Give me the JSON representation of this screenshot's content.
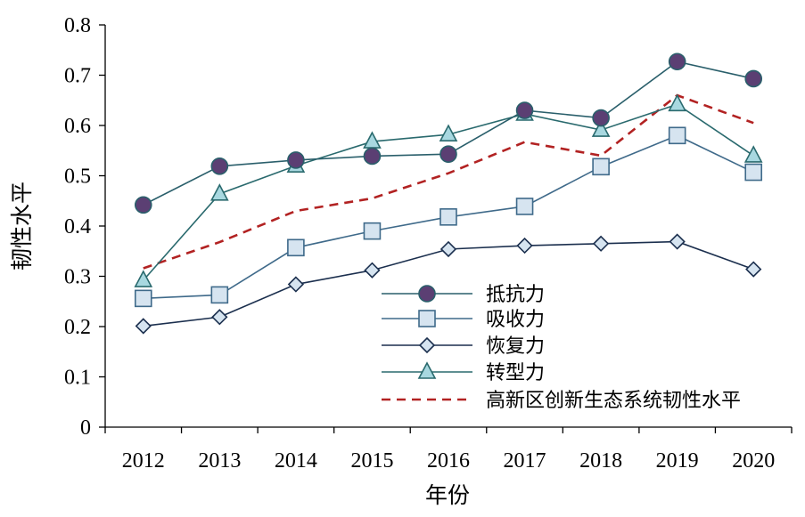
{
  "chart_data": {
    "type": "line",
    "title": "",
    "xlabel": "年份",
    "ylabel": "韧性水平",
    "categories": [
      "2012",
      "2013",
      "2014",
      "2015",
      "2016",
      "2017",
      "2018",
      "2019",
      "2020"
    ],
    "ylim": [
      0,
      0.8
    ],
    "yticks": [
      "0",
      "0.1",
      "0.2",
      "0.3",
      "0.4",
      "0.5",
      "0.6",
      "0.7",
      "0.8"
    ],
    "grid": false,
    "legend_position": "bottom-right",
    "series": [
      {
        "name": "抵抗力",
        "marker": "circle",
        "color": "#2a5f6b",
        "fill": "#5b3f73",
        "values": [
          0.442,
          0.519,
          0.531,
          0.539,
          0.543,
          0.63,
          0.615,
          0.727,
          0.693
        ]
      },
      {
        "name": "吸收力",
        "marker": "square",
        "color": "#3f6a8a",
        "fill": "#d6e4f0",
        "values": [
          0.256,
          0.263,
          0.357,
          0.39,
          0.418,
          0.439,
          0.518,
          0.58,
          0.507
        ]
      },
      {
        "name": "恢复力",
        "marker": "diamond",
        "color": "#1b2f4e",
        "fill": "#d6e4f0",
        "values": [
          0.201,
          0.219,
          0.284,
          0.312,
          0.354,
          0.361,
          0.365,
          0.369,
          0.314
        ]
      },
      {
        "name": "转型力",
        "marker": "triangle",
        "color": "#2a6a6e",
        "fill": "#a8d8e0",
        "values": [
          0.292,
          0.464,
          0.52,
          0.568,
          0.582,
          0.623,
          0.591,
          0.642,
          0.54
        ]
      },
      {
        "name": "高新区创新生态系统韧性水平",
        "marker": "none",
        "dash": true,
        "color": "#b22222",
        "values": [
          0.316,
          0.368,
          0.43,
          0.455,
          0.505,
          0.567,
          0.54,
          0.66,
          0.605
        ]
      }
    ]
  }
}
